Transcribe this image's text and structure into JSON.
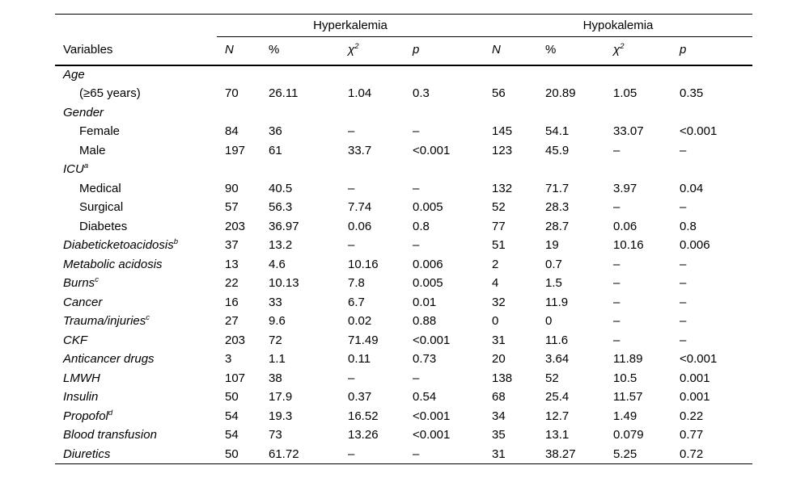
{
  "colors": {
    "background": "#ffffff",
    "text": "#000000",
    "rule": "#000000"
  },
  "table": {
    "variables_header": "Variables",
    "column_groups": [
      {
        "label": "Hyperkalemia"
      },
      {
        "label": "Hypokalemia"
      }
    ],
    "subcolumns": [
      {
        "name": "n",
        "label": "N",
        "italic": true
      },
      {
        "name": "percent",
        "label": "%",
        "italic": false
      },
      {
        "name": "chi-square",
        "label": "χ",
        "sup": "2",
        "italic": true
      },
      {
        "name": "p",
        "label": "p",
        "italic": true
      }
    ],
    "rows": [
      {
        "label": "Age",
        "values": [
          "",
          "",
          "",
          "",
          "",
          "",
          "",
          ""
        ]
      },
      {
        "label": "(≥65 years)",
        "indent": true,
        "values": [
          "70",
          "26.11",
          "1.04",
          "0.3",
          "56",
          "20.89",
          "1.05",
          "0.35"
        ]
      },
      {
        "label": "Gender",
        "values": [
          "",
          "",
          "",
          "",
          "",
          "",
          "",
          ""
        ]
      },
      {
        "label": "Female",
        "indent": true,
        "values": [
          "84",
          "36",
          "–",
          "–",
          "145",
          "54.1",
          "33.07",
          "<0.001"
        ]
      },
      {
        "label": "Male",
        "indent": true,
        "values": [
          "197",
          "61",
          "33.7",
          "<0.001",
          "123",
          "45.9",
          "–",
          "–"
        ]
      },
      {
        "label": "ICU",
        "sup": "a",
        "values": [
          "",
          "",
          "",
          "",
          "",
          "",
          "",
          ""
        ]
      },
      {
        "label": "Medical",
        "indent": true,
        "values": [
          "90",
          "40.5",
          "–",
          "–",
          "132",
          "71.7",
          "3.97",
          "0.04"
        ]
      },
      {
        "label": "Surgical",
        "indent": true,
        "values": [
          "57",
          "56.3",
          "7.74",
          "0.005",
          "52",
          "28.3",
          "–",
          "–"
        ]
      },
      {
        "label": "Diabetes",
        "indent": true,
        "values": [
          "203",
          "36.97",
          "0.06",
          "0.8",
          "77",
          "28.7",
          "0.06",
          "0.8"
        ]
      },
      {
        "label": "Diabeticketoacidosis",
        "sup": "b",
        "values": [
          "37",
          "13.2",
          "–",
          "–",
          "51",
          "19",
          "10.16",
          "0.006"
        ]
      },
      {
        "label": "Metabolic acidosis",
        "values": [
          "13",
          "4.6",
          "10.16",
          "0.006",
          "2",
          "0.7",
          "–",
          "–"
        ]
      },
      {
        "label": "Burns",
        "sup": "c",
        "values": [
          "22",
          "10.13",
          "7.8",
          "0.005",
          "4",
          "1.5",
          "–",
          "–"
        ]
      },
      {
        "label": "Cancer",
        "values": [
          "16",
          "33",
          "6.7",
          "0.01",
          "32",
          "11.9",
          "–",
          "–"
        ]
      },
      {
        "label": "Trauma/injuries",
        "sup": "c",
        "values": [
          "27",
          "9.6",
          "0.02",
          "0.88",
          "0",
          "0",
          "–",
          "–"
        ]
      },
      {
        "label": "CKF",
        "values": [
          "203",
          "72",
          "71.49",
          "<0.001",
          "31",
          "11.6",
          "–",
          "–"
        ]
      },
      {
        "label": "Anticancer drugs",
        "values": [
          "3",
          "1.1",
          "0.11",
          "0.73",
          "20",
          "3.64",
          "11.89",
          "<0.001"
        ]
      },
      {
        "label": "LMWH",
        "values": [
          "107",
          "38",
          "–",
          "–",
          "138",
          "52",
          "10.5",
          "0.001"
        ]
      },
      {
        "label": "Insulin",
        "values": [
          "50",
          "17.9",
          "0.37",
          "0.54",
          "68",
          "25.4",
          "11.57",
          "0.001"
        ]
      },
      {
        "label": "Propofol",
        "sup": "d",
        "values": [
          "54",
          "19.3",
          "16.52",
          "<0.001",
          "34",
          "12.7",
          "1.49",
          "0.22"
        ]
      },
      {
        "label": "Blood transfusion",
        "values": [
          "54",
          "73",
          "13.26",
          "<0.001",
          "35",
          "13.1",
          "0.079",
          "0.77"
        ]
      },
      {
        "label": "Diuretics",
        "values": [
          "50",
          "61.72",
          "–",
          "–",
          "31",
          "38.27",
          "5.25",
          "0.72"
        ]
      }
    ]
  }
}
